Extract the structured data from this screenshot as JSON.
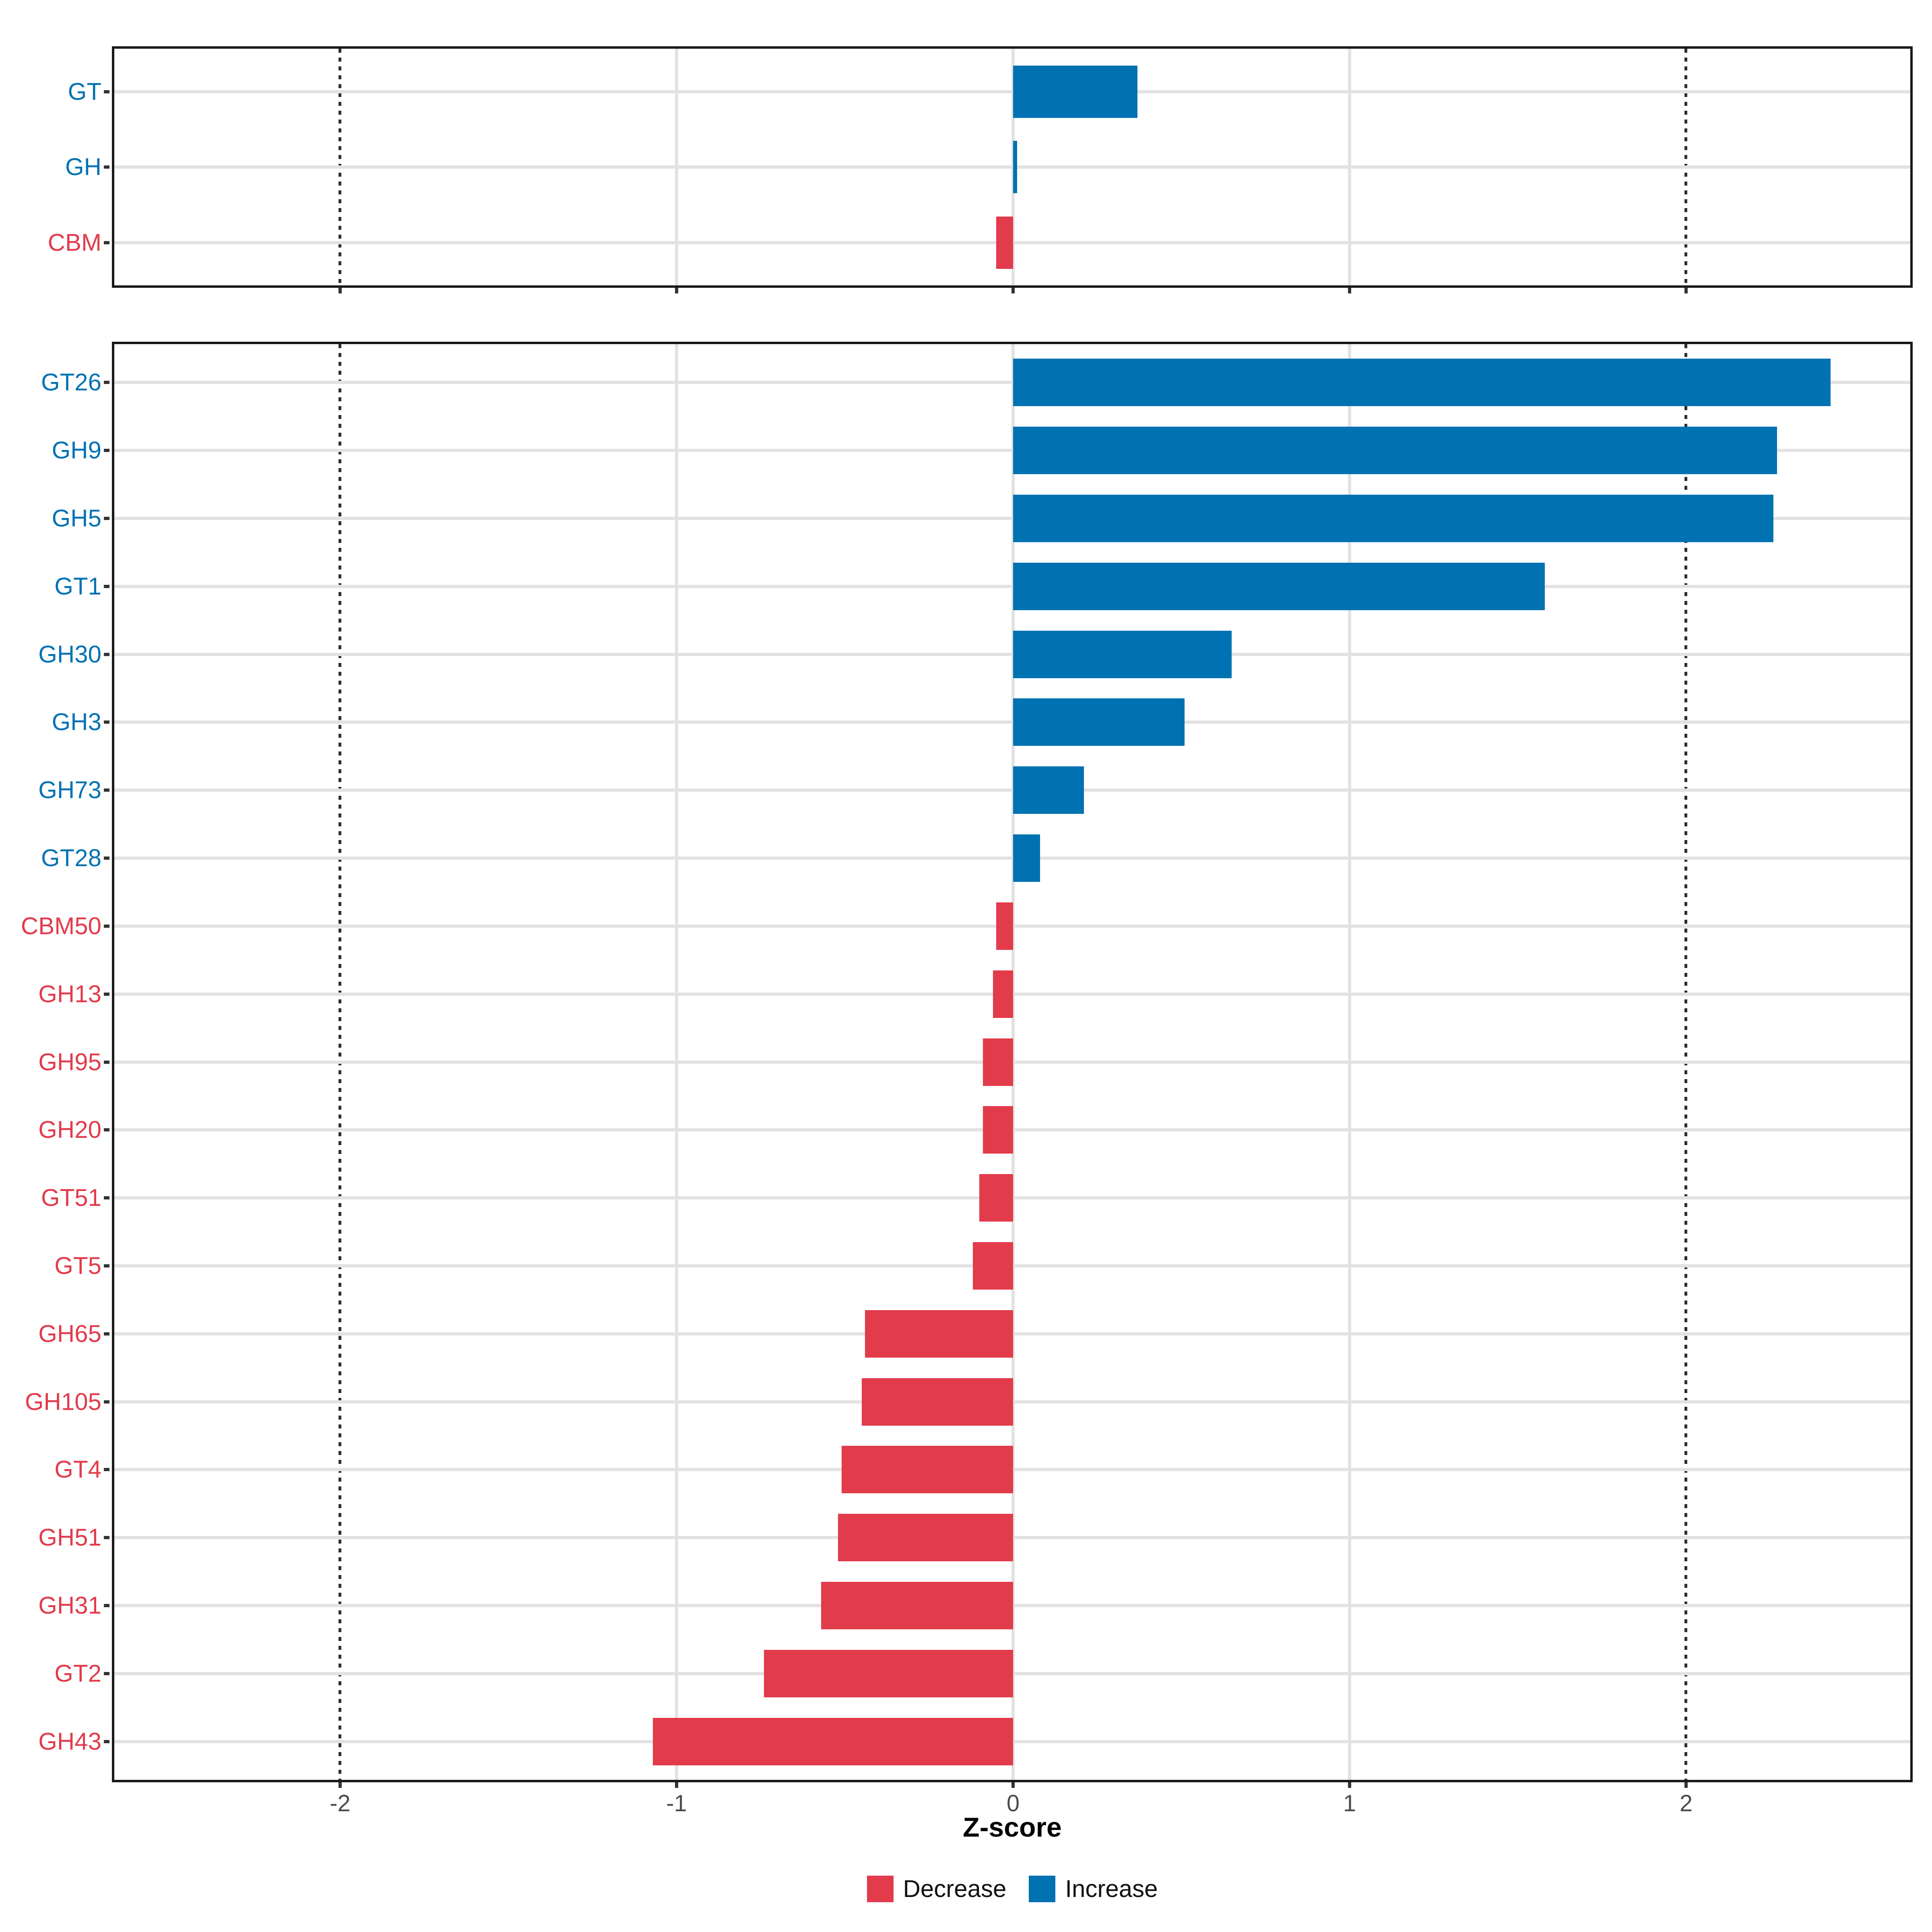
{
  "chart_data": {
    "type": "bar",
    "orientation": "horizontal",
    "title": "",
    "xlabel": "Z-score",
    "x_tick_values": [
      -2,
      -1,
      0,
      1,
      2
    ],
    "x_tick_labels": [
      "-2",
      "-1",
      "0",
      "1",
      "2"
    ],
    "xlim": [
      -2.69,
      2.67
    ],
    "grid": true,
    "legend_position": "bottom",
    "reference_dotted_lines_at": [
      -2,
      2
    ],
    "colors": {
      "increase": "#0072B2",
      "decrease": "#E23B4C",
      "gridline": "#E2E2E2",
      "tick": "#333333",
      "tick_label": "#4d4d4d",
      "panel_border": "#191919"
    },
    "panels": [
      {
        "name": "enzyme-class-summary",
        "rows": [
          {
            "label": "GT",
            "value": 0.37,
            "direction": "Increase"
          },
          {
            "label": "GH",
            "value": 0.012,
            "direction": "Increase"
          },
          {
            "label": "CBM",
            "value": -0.05,
            "direction": "Decrease"
          }
        ]
      },
      {
        "name": "enzyme-family-detail",
        "rows": [
          {
            "label": "GT26",
            "value": 2.43,
            "direction": "Increase"
          },
          {
            "label": "GH9",
            "value": 2.27,
            "direction": "Increase"
          },
          {
            "label": "GH5",
            "value": 2.26,
            "direction": "Increase"
          },
          {
            "label": "GT1",
            "value": 1.58,
            "direction": "Increase"
          },
          {
            "label": "GH30",
            "value": 0.65,
            "direction": "Increase"
          },
          {
            "label": "GH3",
            "value": 0.51,
            "direction": "Increase"
          },
          {
            "label": "GH73",
            "value": 0.21,
            "direction": "Increase"
          },
          {
            "label": "GT28",
            "value": 0.08,
            "direction": "Increase"
          },
          {
            "label": "CBM50",
            "value": -0.05,
            "direction": "Decrease"
          },
          {
            "label": "GH13",
            "value": -0.06,
            "direction": "Decrease"
          },
          {
            "label": "GH95",
            "value": -0.09,
            "direction": "Decrease"
          },
          {
            "label": "GH20",
            "value": -0.09,
            "direction": "Decrease"
          },
          {
            "label": "GT51",
            "value": -0.1,
            "direction": "Decrease"
          },
          {
            "label": "GT5",
            "value": -0.12,
            "direction": "Decrease"
          },
          {
            "label": "GH65",
            "value": -0.44,
            "direction": "Decrease"
          },
          {
            "label": "GH105",
            "value": -0.45,
            "direction": "Decrease"
          },
          {
            "label": "GT4",
            "value": -0.51,
            "direction": "Decrease"
          },
          {
            "label": "GH51",
            "value": -0.52,
            "direction": "Decrease"
          },
          {
            "label": "GH31",
            "value": -0.57,
            "direction": "Decrease"
          },
          {
            "label": "GT2",
            "value": -0.74,
            "direction": "Decrease"
          },
          {
            "label": "GH43",
            "value": -1.07,
            "direction": "Decrease"
          }
        ]
      }
    ],
    "legend": [
      {
        "label": "Decrease",
        "color": "#E23B4C"
      },
      {
        "label": "Increase",
        "color": "#0072B2"
      }
    ]
  }
}
